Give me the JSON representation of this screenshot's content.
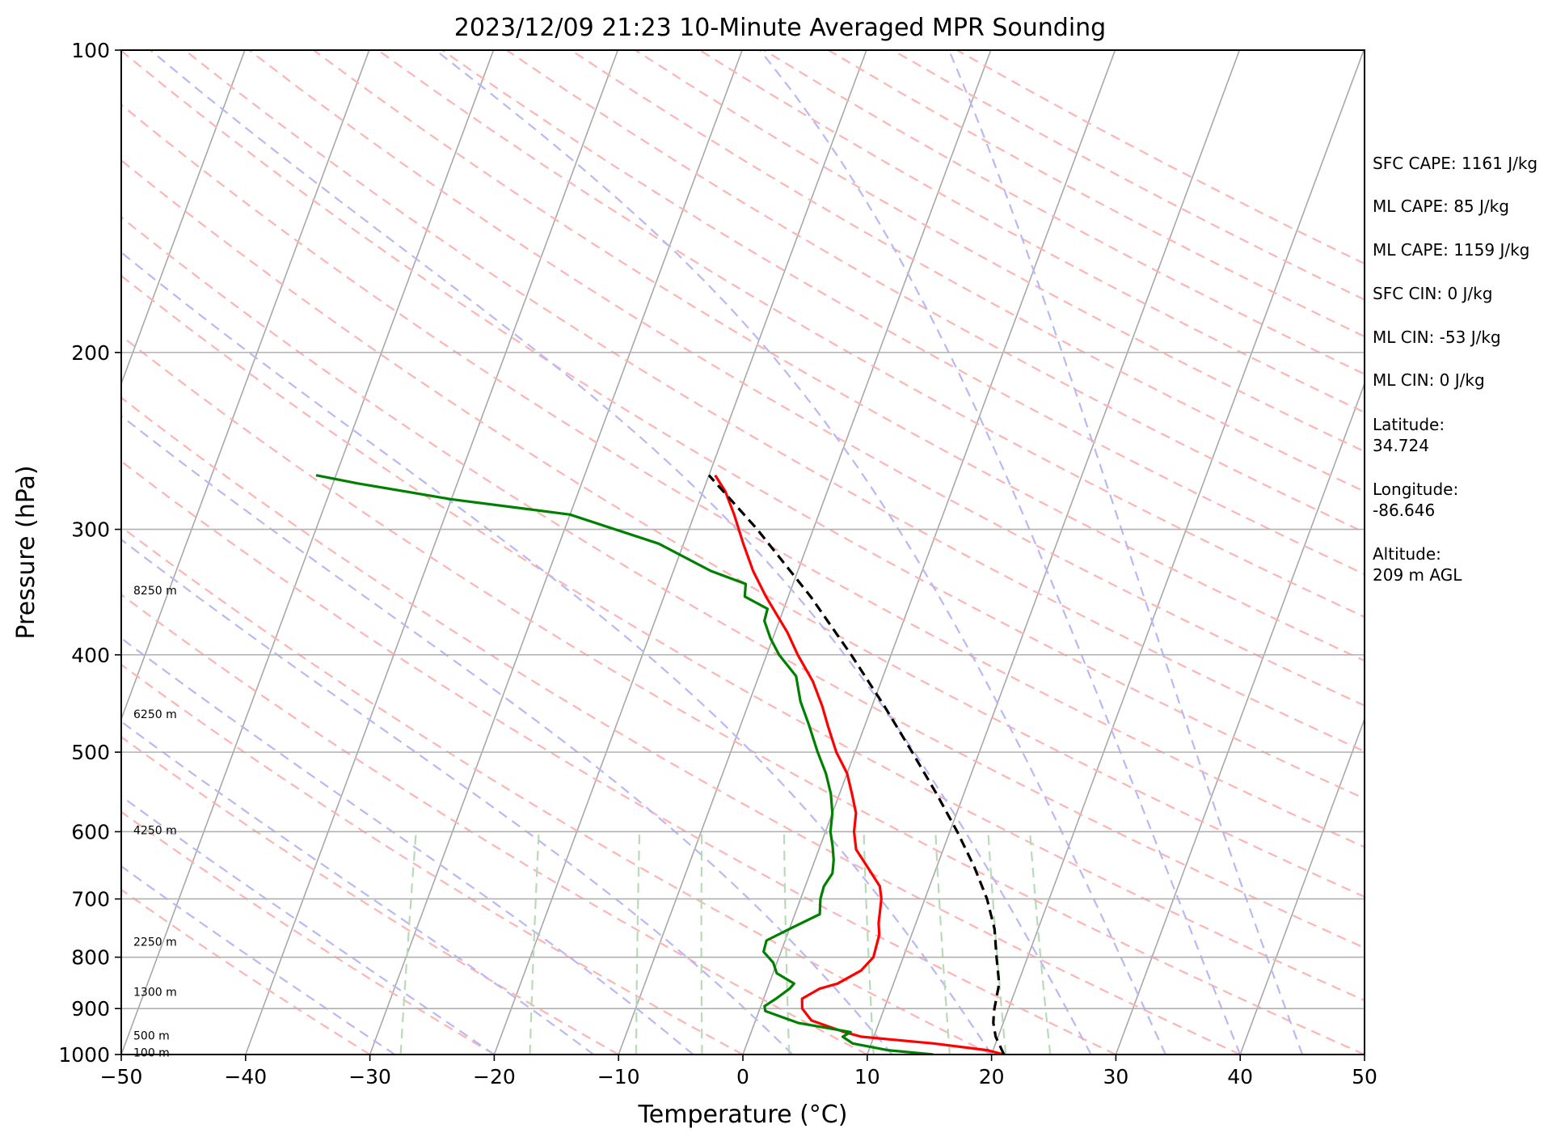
{
  "chart_data": {
    "type": "line",
    "title": "2023/12/09 21:23 10-Minute Averaged MPR Sounding",
    "xlabel": "Temperature (°C)",
    "ylabel": "Pressure (hPa)",
    "xlim": [
      -50,
      50
    ],
    "ylim": [
      1000,
      100
    ],
    "y_scale": "log",
    "grid": true,
    "x_ticks": [
      -50,
      -40,
      -30,
      -20,
      -10,
      0,
      10,
      20,
      30,
      40,
      50
    ],
    "x_tick_labels": [
      "−50",
      "−40",
      "−30",
      "−20",
      "−10",
      "0",
      "10",
      "20",
      "30",
      "40",
      "50"
    ],
    "y_ticks": [
      1000,
      900,
      800,
      700,
      600,
      500,
      400,
      300,
      200,
      100
    ],
    "y_tick_labels": [
      "1000",
      "900",
      "800",
      "700",
      "600",
      "500",
      "400",
      "300",
      "200",
      "100"
    ],
    "height_labels": [
      {
        "p": 850,
        "text": "8250 m",
        "pressure": 345
      },
      {
        "p": 0,
        "text": "6250 m",
        "pressure": 458
      },
      {
        "p": 0,
        "text": "4250 m",
        "pressure": 598
      },
      {
        "p": 0,
        "text": "2250 m",
        "pressure": 772
      },
      {
        "p": 0,
        "text": "1300 m",
        "pressure": 866
      },
      {
        "p": 0,
        "text": "500 m",
        "pressure": 957
      },
      {
        "p": 0,
        "text": "100 m",
        "pressure": 995
      }
    ],
    "series": [
      {
        "role": "temperature",
        "color": "#ff0000",
        "points": [
          [
            1000,
            21.0
          ],
          [
            990,
            19.5
          ],
          [
            975,
            15.0
          ],
          [
            960,
            9.0
          ],
          [
            950,
            7.5
          ],
          [
            925,
            4.5
          ],
          [
            900,
            3.4
          ],
          [
            880,
            3.1
          ],
          [
            860,
            4.2
          ],
          [
            850,
            5.5
          ],
          [
            825,
            7.0
          ],
          [
            800,
            7.6
          ],
          [
            780,
            7.5
          ],
          [
            760,
            7.4
          ],
          [
            740,
            7.0
          ],
          [
            700,
            6.5
          ],
          [
            680,
            6.0
          ],
          [
            650,
            4.4
          ],
          [
            625,
            3.0
          ],
          [
            600,
            2.3
          ],
          [
            575,
            1.9
          ],
          [
            550,
            1.0
          ],
          [
            525,
            0.0
          ],
          [
            500,
            -1.5
          ],
          [
            470,
            -3.0
          ],
          [
            450,
            -4.0
          ],
          [
            425,
            -5.5
          ],
          [
            400,
            -7.5
          ],
          [
            380,
            -9.0
          ],
          [
            350,
            -11.8
          ],
          [
            330,
            -13.6
          ],
          [
            310,
            -15.2
          ],
          [
            290,
            -16.8
          ],
          [
            275,
            -18.2
          ],
          [
            265,
            -19.5
          ]
        ]
      },
      {
        "role": "dewpoint",
        "color": "#008000",
        "points": [
          [
            1000,
            15.3
          ],
          [
            990,
            11.5
          ],
          [
            975,
            8.5
          ],
          [
            960,
            7.5
          ],
          [
            950,
            8.0
          ],
          [
            930,
            3.5
          ],
          [
            905,
            0.5
          ],
          [
            895,
            0.3
          ],
          [
            880,
            1.0
          ],
          [
            860,
            1.8
          ],
          [
            850,
            2.0
          ],
          [
            830,
            0.3
          ],
          [
            810,
            -0.3
          ],
          [
            790,
            -1.4
          ],
          [
            770,
            -1.5
          ],
          [
            750,
            0.0
          ],
          [
            725,
            2.0
          ],
          [
            700,
            1.6
          ],
          [
            680,
            1.5
          ],
          [
            660,
            1.8
          ],
          [
            640,
            1.5
          ],
          [
            620,
            1.0
          ],
          [
            600,
            0.4
          ],
          [
            575,
            0.0
          ],
          [
            550,
            -0.7
          ],
          [
            525,
            -1.7
          ],
          [
            500,
            -3.0
          ],
          [
            470,
            -4.5
          ],
          [
            445,
            -5.9
          ],
          [
            420,
            -7.0
          ],
          [
            400,
            -9.0
          ],
          [
            385,
            -10.2
          ],
          [
            370,
            -11.2
          ],
          [
            360,
            -11.3
          ],
          [
            350,
            -13.5
          ],
          [
            340,
            -13.8
          ],
          [
            330,
            -17.0
          ],
          [
            310,
            -22.0
          ],
          [
            290,
            -30.0
          ],
          [
            280,
            -40.0
          ],
          [
            270,
            -48.0
          ],
          [
            265,
            -51.6
          ]
        ]
      },
      {
        "role": "parcel",
        "color": "#000000",
        "style": "dashed",
        "points": [
          [
            1000,
            21.0
          ],
          [
            960,
            19.8
          ],
          [
            930,
            19.2
          ],
          [
            905,
            18.9
          ],
          [
            850,
            18.5
          ],
          [
            800,
            17.5
          ],
          [
            750,
            16.5
          ],
          [
            700,
            15.0
          ],
          [
            650,
            13.0
          ],
          [
            600,
            10.6
          ],
          [
            550,
            7.8
          ],
          [
            500,
            4.6
          ],
          [
            450,
            1.0
          ],
          [
            400,
            -3.2
          ],
          [
            350,
            -8.2
          ],
          [
            300,
            -14.5
          ],
          [
            265,
            -20.0
          ]
        ]
      }
    ]
  },
  "info_panel": {
    "sfc_cape": "SFC CAPE: 1161 J/kg",
    "ml_cape_1": "ML CAPE: 85 J/kg",
    "ml_cape_2": "ML CAPE: 1159 J/kg",
    "sfc_cin": "SFC CIN: 0 J/kg",
    "ml_cin_1": "ML CIN: -53 J/kg",
    "ml_cin_2": "ML CIN: 0 J/kg",
    "latitude_label": "Latitude:",
    "latitude_value": "34.724",
    "longitude_label": "Longitude:",
    "longitude_value": "-86.646",
    "altitude_label": "Altitude:",
    "altitude_value": "209 m AGL"
  }
}
